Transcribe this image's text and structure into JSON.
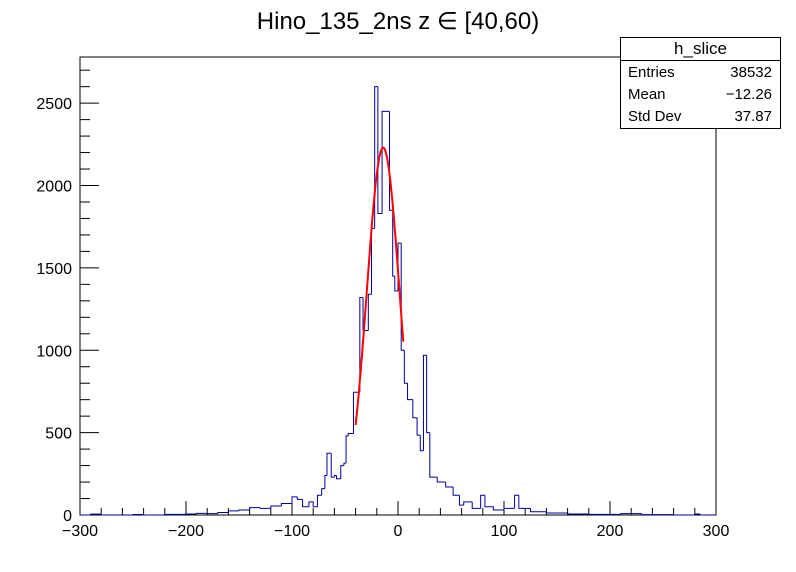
{
  "chart_data": {
    "type": "histogram",
    "title": "Hino_135_2ns z  ∈ [40,60)",
    "xlabel": "",
    "ylabel": "",
    "xlim": [
      -300,
      300
    ],
    "ylim": [
      0,
      2780
    ],
    "x_ticks": [
      "−300",
      "−200",
      "−100",
      "0",
      "100",
      "200",
      "300"
    ],
    "x_tick_values": [
      -300,
      -200,
      -100,
      0,
      100,
      200,
      300
    ],
    "y_ticks": [
      "0",
      "500",
      "1000",
      "1500",
      "2000",
      "2500"
    ],
    "y_tick_values": [
      0,
      500,
      1000,
      1500,
      2000,
      2500
    ],
    "line_color": "#000099",
    "fit_color": "#ff0000",
    "bins": [
      [
        -300,
        -290,
        0
      ],
      [
        -290,
        -280,
        5
      ],
      [
        -280,
        -250,
        0
      ],
      [
        -250,
        -240,
        3
      ],
      [
        -240,
        -220,
        0
      ],
      [
        -220,
        -200,
        4
      ],
      [
        -200,
        -190,
        6
      ],
      [
        -190,
        -180,
        10
      ],
      [
        -180,
        -170,
        8
      ],
      [
        -170,
        -160,
        15
      ],
      [
        -160,
        -150,
        25
      ],
      [
        -150,
        -140,
        30
      ],
      [
        -140,
        -130,
        45
      ],
      [
        -130,
        -120,
        40
      ],
      [
        -120,
        -110,
        55
      ],
      [
        -110,
        -100,
        70
      ],
      [
        -100,
        -95,
        110
      ],
      [
        -95,
        -90,
        95
      ],
      [
        -90,
        -84,
        50
      ],
      [
        -84,
        -80,
        80
      ],
      [
        -80,
        -76,
        50
      ],
      [
        -76,
        -72,
        120
      ],
      [
        -72,
        -69,
        160
      ],
      [
        -69,
        -67,
        240
      ],
      [
        -67,
        -63,
        375
      ],
      [
        -63,
        -60,
        230
      ],
      [
        -60,
        -58,
        240
      ],
      [
        -58,
        -54,
        220
      ],
      [
        -54,
        -51,
        300
      ],
      [
        -51,
        -49,
        315
      ],
      [
        -49,
        -47,
        480
      ],
      [
        -47,
        -42,
        495
      ],
      [
        -42,
        -36,
        745
      ],
      [
        -36,
        -33,
        1320
      ],
      [
        -33,
        -28,
        1120
      ],
      [
        -28,
        -25,
        1340
      ],
      [
        -25,
        -22,
        1740
      ],
      [
        -22,
        -19,
        2600
      ],
      [
        -19,
        -15,
        1830
      ],
      [
        -15,
        -8,
        2450
      ],
      [
        -8,
        -5,
        1850
      ],
      [
        -5,
        -3,
        1450
      ],
      [
        -3,
        0,
        1360
      ],
      [
        0,
        3,
        1650
      ],
      [
        3,
        6,
        1000
      ],
      [
        6,
        9,
        800
      ],
      [
        9,
        14,
        700
      ],
      [
        14,
        18,
        590
      ],
      [
        18,
        21,
        485
      ],
      [
        21,
        24,
        390
      ],
      [
        24,
        27,
        970
      ],
      [
        27,
        30,
        500
      ],
      [
        30,
        37,
        230
      ],
      [
        37,
        45,
        200
      ],
      [
        45,
        52,
        170
      ],
      [
        52,
        58,
        120
      ],
      [
        58,
        62,
        60
      ],
      [
        62,
        70,
        80
      ],
      [
        70,
        78,
        40
      ],
      [
        78,
        82,
        120
      ],
      [
        82,
        90,
        50
      ],
      [
        90,
        100,
        30
      ],
      [
        100,
        110,
        40
      ],
      [
        110,
        114,
        120
      ],
      [
        114,
        125,
        40
      ],
      [
        125,
        140,
        20
      ],
      [
        140,
        160,
        12
      ],
      [
        160,
        180,
        6
      ],
      [
        180,
        210,
        4
      ],
      [
        210,
        230,
        8
      ],
      [
        230,
        260,
        2
      ],
      [
        260,
        280,
        0
      ],
      [
        280,
        285,
        6
      ],
      [
        285,
        300,
        0
      ]
    ],
    "fit": {
      "function": "gaus",
      "constant": 2230,
      "mean": -14,
      "sigma": 15.5,
      "range": [
        -40,
        5
      ]
    }
  },
  "stats": {
    "name": "h_slice",
    "rows": [
      {
        "label": "Entries",
        "value": "38532"
      },
      {
        "label": "Mean",
        "value": "−12.26"
      },
      {
        "label": "Std Dev",
        "value": "37.87"
      }
    ]
  }
}
